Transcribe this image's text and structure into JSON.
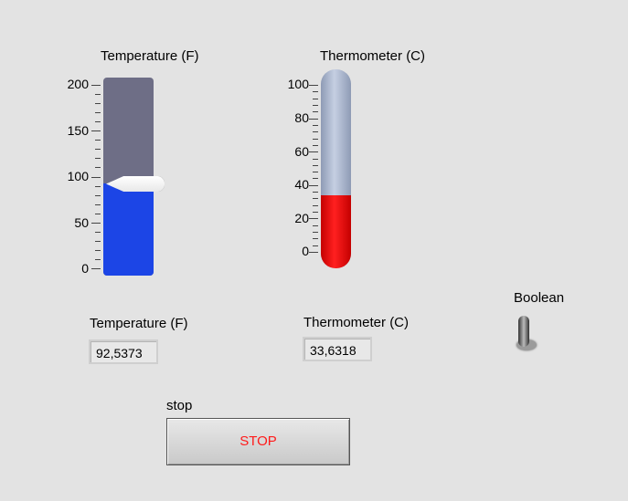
{
  "temperature_slider": {
    "title": "Temperature (F)",
    "ticks": [
      "200",
      "150",
      "100",
      "50",
      "0"
    ],
    "min": 0,
    "max": 200,
    "value": 92.5373
  },
  "thermometer": {
    "title": "Thermometer (C)",
    "ticks": [
      "100",
      "80",
      "60",
      "40",
      "20",
      "0"
    ],
    "min": 0,
    "max": 100,
    "value": 33.6318
  },
  "temperature_indicator": {
    "label": "Temperature (F)",
    "value": "92,5373"
  },
  "thermometer_indicator": {
    "label": "Thermometer (C)",
    "value": "33,6318"
  },
  "boolean": {
    "label": "Boolean",
    "state": false
  },
  "stop": {
    "label": "stop",
    "button_text": "STOP"
  },
  "colors": {
    "slider_fill": "#1c45e6",
    "slider_track": "#6e6e86",
    "thermo_fill": "#ff2020",
    "stop_text": "#ff1a1a"
  }
}
